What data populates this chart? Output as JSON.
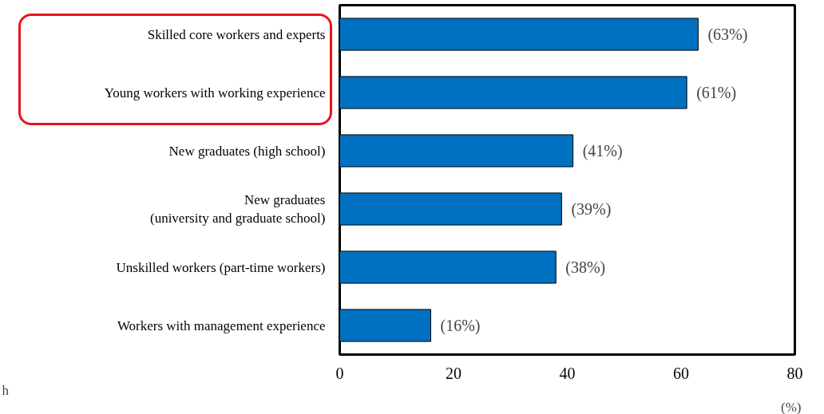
{
  "chart_data": {
    "type": "bar",
    "orientation": "horizontal",
    "xlabel": "(%)",
    "categories": [
      "Skilled core workers and experts",
      "Young workers with working experience",
      "New graduates (high school)",
      "New graduates\n(university and graduate school)",
      "Unskilled workers (part-time workers)",
      "Workers with management experience"
    ],
    "values": [
      63,
      61,
      41,
      39,
      38,
      16
    ],
    "value_labels": [
      "(63%)",
      "(61%)",
      "(41%)",
      "(39%)",
      "(38%)",
      "(16%)"
    ],
    "color": "#0070c0",
    "xlim": [
      0,
      80
    ],
    "xticks": [
      0,
      20,
      40,
      60,
      80
    ],
    "grid": false,
    "annotations": [
      "h"
    ]
  }
}
